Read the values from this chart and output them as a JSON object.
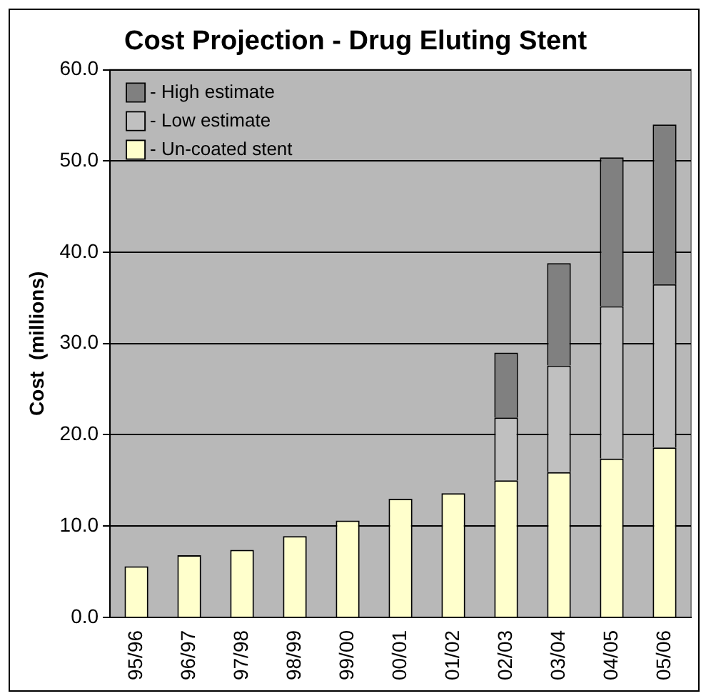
{
  "chart_data": {
    "type": "bar",
    "title": "Cost Projection - Drug Eluting Stent",
    "ylabel": "Cost  (millions)",
    "categories": [
      "95/96",
      "96/97",
      "97/98",
      "98/99",
      "99/00",
      "00/01",
      "01/02",
      "02/03",
      "03/04",
      "04/05",
      "05/06"
    ],
    "stacked": true,
    "series": [
      {
        "name": "- Un-coated stent",
        "color": "#ffffcc",
        "values": [
          5.6,
          6.8,
          7.4,
          8.9,
          10.6,
          13.0,
          13.6,
          15.0,
          15.9,
          17.4,
          18.6
        ]
      },
      {
        "name": "- Low estimate",
        "color": "#c0c0c0",
        "values": [
          null,
          null,
          null,
          null,
          null,
          null,
          null,
          6.9,
          11.7,
          16.7,
          17.9
        ]
      },
      {
        "name": "- High estimate",
        "color": "#808080",
        "values": [
          null,
          null,
          null,
          null,
          null,
          null,
          null,
          7.1,
          11.2,
          16.3,
          17.5
        ]
      }
    ],
    "ylim": [
      0,
      60
    ],
    "yticks": [
      {
        "value": 0,
        "label": "0.0"
      },
      {
        "value": 10,
        "label": "10.0"
      },
      {
        "value": 20,
        "label": "20.0"
      },
      {
        "value": 30,
        "label": "30.0"
      },
      {
        "value": 40,
        "label": "40.0"
      },
      {
        "value": 50,
        "label": "50.0"
      },
      {
        "value": 60,
        "label": "60.0"
      }
    ],
    "grid": "y",
    "legend": "top left"
  }
}
